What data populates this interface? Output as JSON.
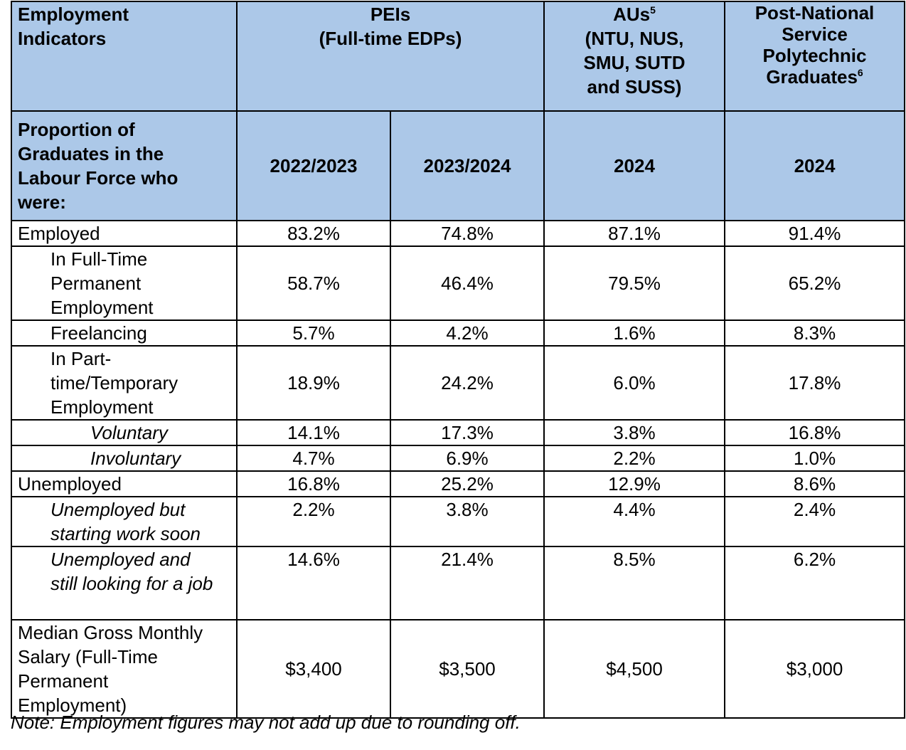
{
  "header": {
    "indicators": "Employment Indicators",
    "peis_line1": "PEIs",
    "peis_line2": "(Full-time EDPs)",
    "aus_line1": "AUs",
    "aus_sup": "5",
    "aus_line2": "(NTU, NUS,",
    "aus_line3": "SMU, SUTD",
    "aus_line4": "and SUSS)",
    "pns_line1": "Post-National",
    "pns_line2": "Service",
    "pns_line3": "Polytechnic",
    "pns_line4": "Graduates",
    "pns_sup": "6",
    "proportion": "Proportion of Graduates in the Labour Force who were:",
    "year1": "2022/2023",
    "year2": "2023/2024",
    "year3": "2024",
    "year4": "2024"
  },
  "rows": [
    {
      "label": "Employed",
      "values": [
        "83.2%",
        "74.8%",
        "87.1%",
        "91.4%"
      ]
    },
    {
      "label": "In Full-Time Permanent Employment",
      "values": [
        "58.7%",
        "46.4%",
        "79.5%",
        "65.2%"
      ]
    },
    {
      "label": "Freelancing",
      "values": [
        "5.7%",
        "4.2%",
        "1.6%",
        "8.3%"
      ]
    },
    {
      "label": "In Part-time/Temporary Employment",
      "values": [
        "18.9%",
        "24.2%",
        "6.0%",
        "17.8%"
      ]
    },
    {
      "label": "Voluntary",
      "values": [
        "14.1%",
        "17.3%",
        "3.8%",
        "16.8%"
      ]
    },
    {
      "label": "Involuntary",
      "values": [
        "4.7%",
        "6.9%",
        "2.2%",
        "1.0%"
      ]
    },
    {
      "label": "Unemployed",
      "values": [
        "16.8%",
        "25.2%",
        "12.9%",
        "8.6%"
      ]
    },
    {
      "label": "Unemployed but starting work soon",
      "values": [
        "2.2%",
        "3.8%",
        "4.4%",
        "2.4%"
      ]
    },
    {
      "label": "Unemployed and still looking for a job",
      "values": [
        "14.6%",
        "21.4%",
        "8.5%",
        "6.2%"
      ]
    },
    {
      "label": "Median Gross Monthly Salary (Full-Time Permanent Employment)",
      "values": [
        "$3,400",
        "$3,500",
        "$4,500",
        "$3,000"
      ]
    }
  ],
  "note": "Note: Employment figures may not add up due to rounding off.",
  "colors": {
    "header_bg": "#acc8e8",
    "border": "#000000"
  }
}
